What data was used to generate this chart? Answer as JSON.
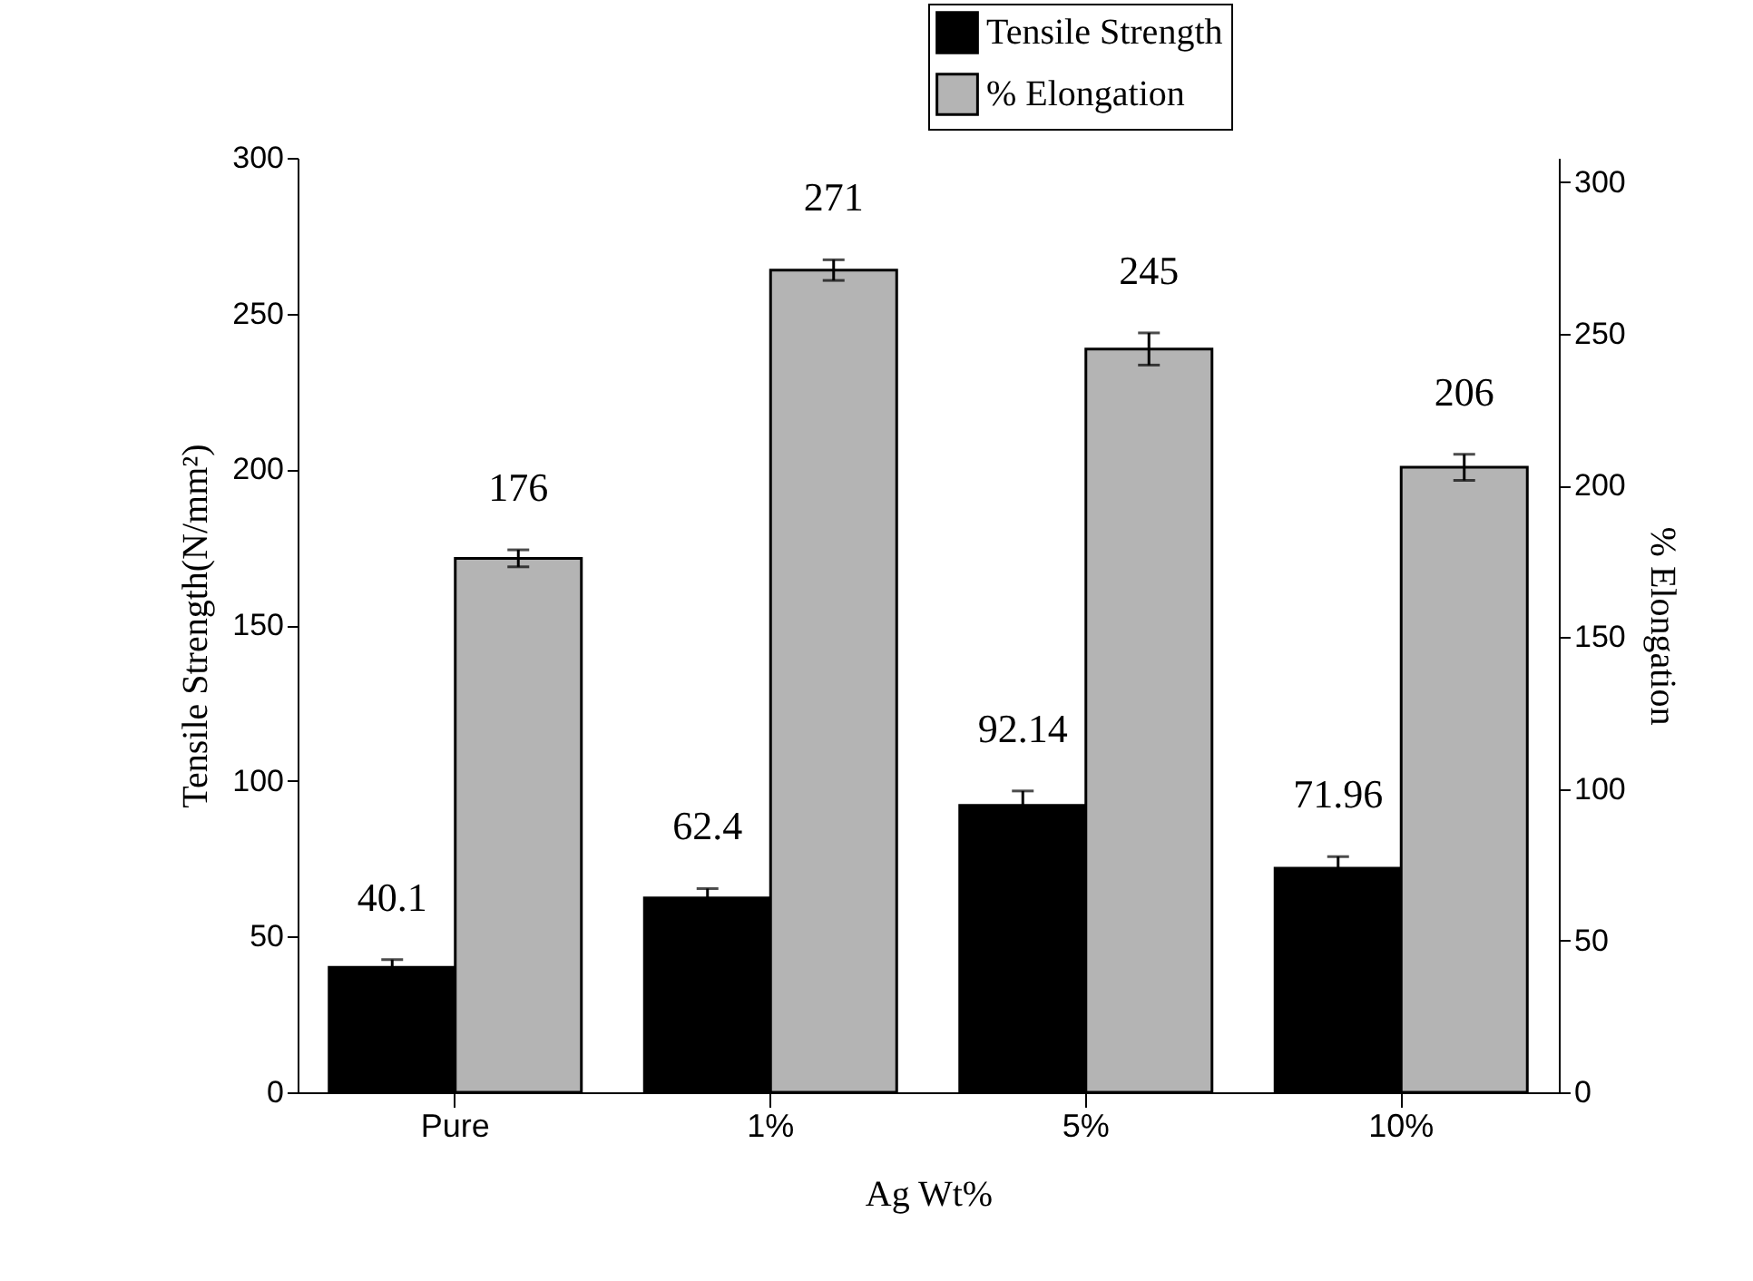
{
  "chart_data": {
    "type": "bar",
    "xlabel": "Ag Wt%",
    "ylabel": "Tensile Strength(N/mm²)",
    "y2label": "% Elongation",
    "categories": [
      "Pure",
      "1%",
      "5%",
      "10%"
    ],
    "series": [
      {
        "name": "Tensile Strength",
        "color": "#000000",
        "values": [
          40.1,
          62.4,
          92.14,
          71.96
        ],
        "errors": [
          2.5,
          3,
          4.6,
          3.7
        ]
      },
      {
        "name": "% Elongation",
        "color": "#b4b4b4",
        "axis": "y2",
        "values": [
          176,
          271,
          245,
          206
        ],
        "errors": [
          2.8,
          3.4,
          5.3,
          4.3
        ]
      }
    ],
    "ylim": [
      0,
      300
    ],
    "yticks": [
      0,
      50,
      100,
      150,
      200,
      250,
      300
    ],
    "y2lim": [
      0,
      308
    ],
    "y2ticks": [
      0,
      50,
      100,
      150,
      200,
      250,
      300
    ],
    "data_labels": true,
    "legend": "top right"
  }
}
